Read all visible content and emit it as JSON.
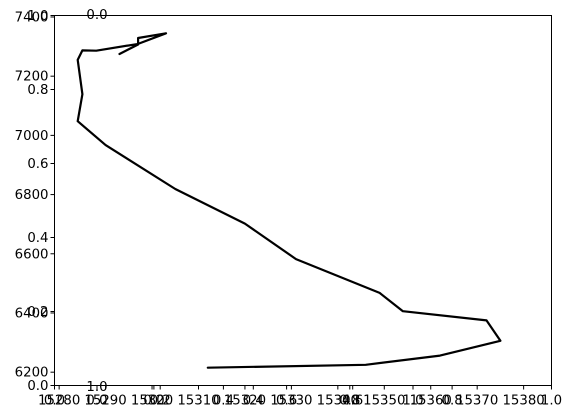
{
  "chart_data": {
    "type": "line",
    "title": "",
    "xlabel": "",
    "ylabel": "",
    "grid": false,
    "xlim": [
      15279,
      15386
    ],
    "ylim": [
      6155,
      7405
    ],
    "x_ticks": [
      15280,
      15290,
      15300,
      15310,
      15320,
      15330,
      15340,
      15350,
      15360,
      15370,
      15380
    ],
    "x_tick_labels": [
      "15280",
      "15290",
      "15300",
      "15310",
      "15320",
      "15330",
      "15340",
      "15350",
      "15360",
      "15370",
      "15380"
    ],
    "y_ticks": [
      6200,
      6400,
      6600,
      6800,
      7000,
      7200,
      7400
    ],
    "y_tick_labels": [
      "6200",
      "6400",
      "6600",
      "6800",
      "7000",
      "7200",
      "7400"
    ],
    "overlay_left_ticks": [
      "0.0",
      "0.2",
      "0.4",
      "0.6",
      "0.8",
      "1.0"
    ],
    "overlay_bottom_ticks": [
      "0.0",
      "0.2",
      "0.4",
      "0.6",
      "0.8",
      "1.0"
    ],
    "overlay_inner_bottom_ticks": [
      "0.0",
      "0.2",
      "0.4",
      "0.6",
      "0.8",
      "1.0"
    ],
    "overlay_top_label": "0.0",
    "overlay_bottom_left_label": "1.0",
    "series": [
      {
        "color": "#000000",
        "x": [
          15312,
          15346,
          15362,
          15375,
          15372,
          15354,
          15349,
          15331,
          15320,
          15305,
          15290,
          15284,
          15285,
          15284,
          15285,
          15288,
          15297,
          15303,
          15297,
          15297,
          15293
        ],
        "y": [
          6215,
          6225,
          6256,
          6306,
          6375,
          6406,
          6468,
          6582,
          6702,
          6819,
          6967,
          7048,
          7139,
          7255,
          7287,
          7286,
          7309,
          7345,
          7329,
          7307,
          7275
        ]
      }
    ]
  }
}
